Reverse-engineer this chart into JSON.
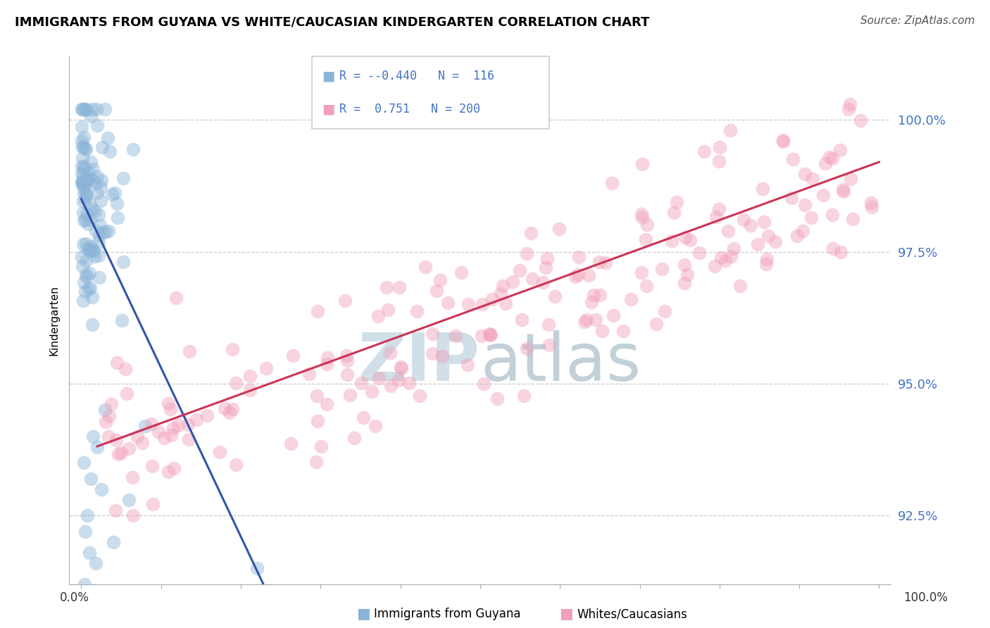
{
  "title": "IMMIGRANTS FROM GUYANA VS WHITE/CAUCASIAN KINDERGARTEN CORRELATION CHART",
  "source": "Source: ZipAtlas.com",
  "ylabel": "Kindergarten",
  "ytick_values": [
    92.5,
    95.0,
    97.5,
    100.0
  ],
  "ymin": 91.2,
  "ymax": 101.2,
  "xmin": -1.5,
  "xmax": 101.5,
  "blue_color": "#8ab4d8",
  "pink_color": "#f0a0b8",
  "blue_line_color": "#3355aa",
  "pink_line_color": "#cc3355",
  "dashed_line_color": "#bbbbbb",
  "background_color": "#ffffff",
  "watermark_zip": "ZIP",
  "watermark_atlas": "atlas",
  "watermark_color": "#d0dfe8",
  "legend_r_blue": "-0.440",
  "legend_n_blue": "116",
  "legend_r_pink": "0.751",
  "legend_n_pink": "200"
}
